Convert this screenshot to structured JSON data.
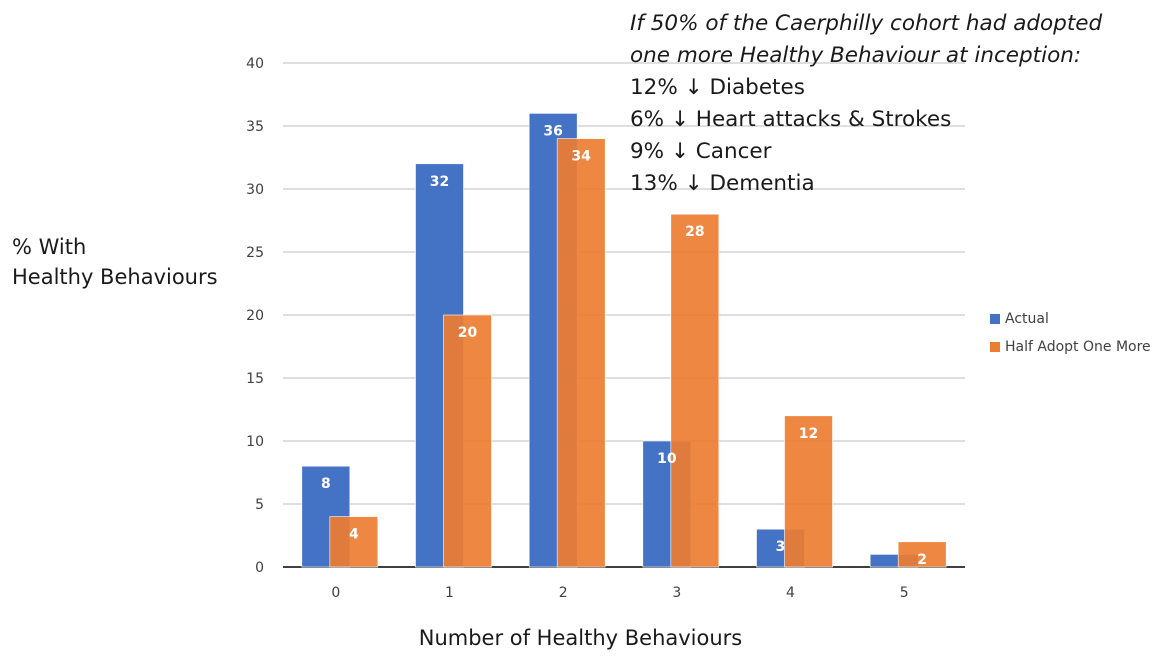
{
  "chart_data": {
    "type": "bar",
    "categories": [
      "0",
      "1",
      "2",
      "3",
      "4",
      "5"
    ],
    "series": [
      {
        "name": "Actual",
        "values": [
          8,
          32,
          36,
          10,
          3,
          1
        ],
        "color": "#4472C4",
        "labels": [
          "8",
          "32",
          "36",
          "10",
          "3",
          ""
        ]
      },
      {
        "name": "Half Adopt One More",
        "values": [
          4,
          20,
          34,
          28,
          12,
          2
        ],
        "color": "#ED7D31",
        "labels": [
          "4",
          "20",
          "34",
          "28",
          "12",
          "2"
        ]
      }
    ],
    "xlabel": "Number of Healthy Behaviours",
    "ylabel_line1": "% With",
    "ylabel_line2": "Healthy Behaviours",
    "ylim": [
      0,
      40
    ],
    "yticks": [
      "0",
      "5",
      "10",
      "15",
      "20",
      "25",
      "30",
      "35",
      "40"
    ],
    "ytick_values": [
      0,
      5,
      10,
      15,
      20,
      25,
      30,
      35,
      40
    ],
    "grid": true,
    "legend": "right"
  },
  "annotation": {
    "line1": "If 50% of the Caerphilly cohort had adopted",
    "line2": "one more Healthy Behaviour at inception:",
    "items": [
      "12% ↓ Diabetes",
      "6% ↓ Heart attacks & Strokes",
      "9% ↓ Cancer",
      "13% ↓ Dementia"
    ]
  }
}
